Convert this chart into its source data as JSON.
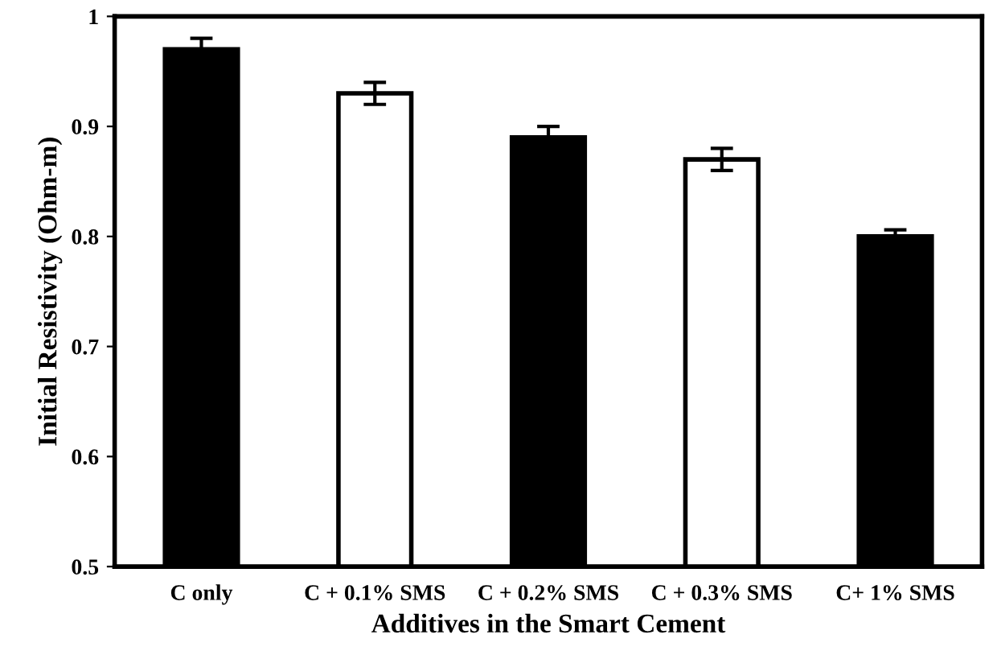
{
  "chart_data": {
    "type": "bar",
    "xlabel": "Additives in the Smart Cement",
    "ylabel": "Initial Resistivity (Ohm-m)",
    "categories": [
      "C only",
      "C + 0.1% SMS",
      "C + 0.2% SMS",
      "C + 0.3% SMS",
      "C+ 1% SMS"
    ],
    "values": [
      0.97,
      0.93,
      0.89,
      0.87,
      0.8
    ],
    "errors": [
      0.01,
      0.01,
      0.01,
      0.01,
      0.006
    ],
    "colors": [
      "#000000",
      "#ffffff",
      "#000000",
      "#ffffff",
      "#000000"
    ],
    "ylim": [
      0.5,
      1
    ],
    "yticks": [
      0.5,
      0.6,
      0.7,
      0.8,
      0.9,
      1
    ],
    "grid": false
  }
}
